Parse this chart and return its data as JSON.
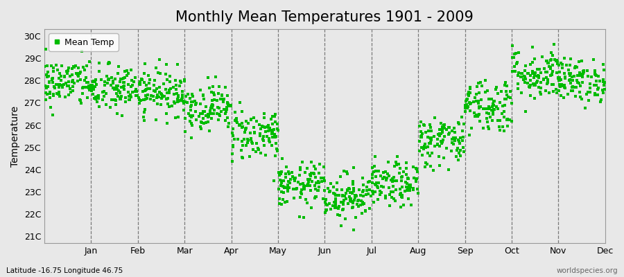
{
  "title": "Monthly Mean Temperatures 1901 - 2009",
  "ylabel": "Temperature",
  "xlabel_labels": [
    "Jan",
    "Feb",
    "Mar",
    "Apr",
    "May",
    "Jun",
    "Jul",
    "Aug",
    "Sep",
    "Oct",
    "Nov",
    "Dec"
  ],
  "ytick_labels": [
    "21C",
    "22C",
    "23C",
    "24C",
    "25C",
    "26C",
    "27C",
    "28C",
    "29C",
    "30C"
  ],
  "ytick_values": [
    21,
    22,
    23,
    24,
    25,
    26,
    27,
    28,
    29,
    30
  ],
  "ylim": [
    20.7,
    30.3
  ],
  "dot_color": "#00bb00",
  "dot_size": 5,
  "background_color": "#e8e8e8",
  "plot_bg_color": "#e8e8e8",
  "legend_label": "Mean Temp",
  "footer_left": "Latitude -16.75 Longitude 46.75",
  "footer_right": "worldspecies.org",
  "title_fontsize": 15,
  "axis_fontsize": 9,
  "monthly_means": [
    27.9,
    27.6,
    27.5,
    26.8,
    25.6,
    23.3,
    22.8,
    23.3,
    25.3,
    26.9,
    28.3,
    28.0
  ],
  "monthly_stds": [
    0.55,
    0.55,
    0.52,
    0.52,
    0.6,
    0.5,
    0.52,
    0.5,
    0.58,
    0.62,
    0.6,
    0.48
  ],
  "n_years": 109
}
